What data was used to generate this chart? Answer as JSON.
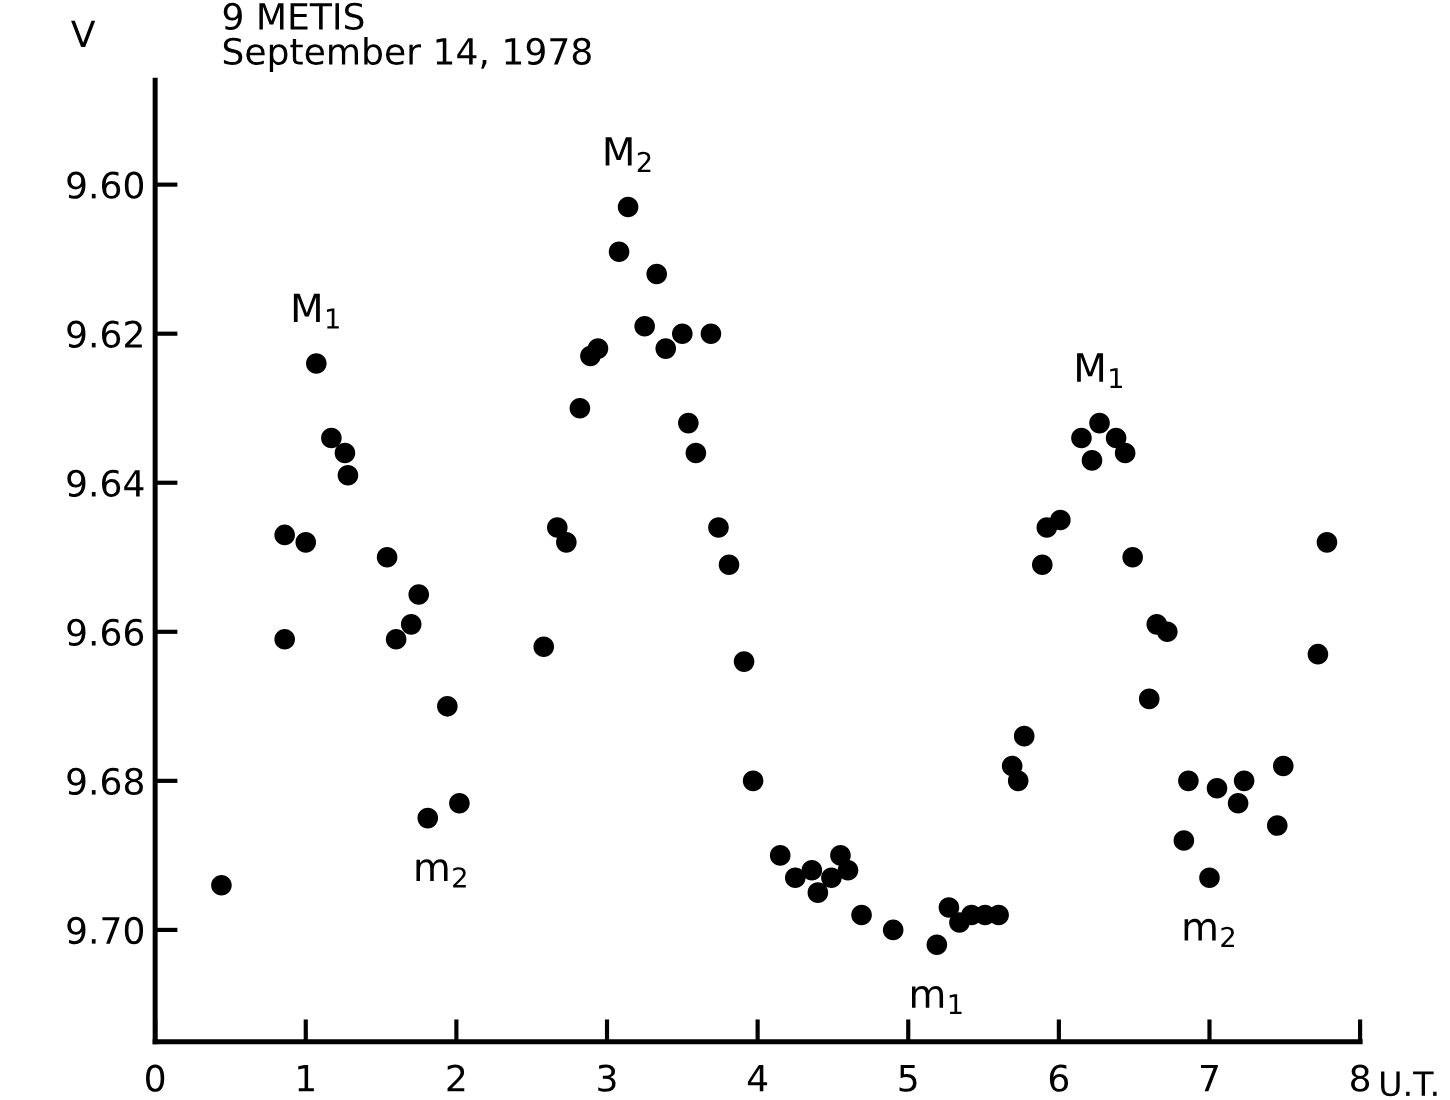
{
  "chart_data": {
    "type": "scatter",
    "title": "9 METIS",
    "subtitle": "September 14, 1978",
    "xlabel": "U.T.",
    "ylabel": "V",
    "x": [
      0.44,
      0.86,
      0.86,
      1.0,
      1.07,
      1.17,
      1.26,
      1.28,
      1.54,
      1.6,
      1.7,
      1.75,
      1.81,
      1.94,
      2.02,
      2.58,
      2.67,
      2.73,
      2.82,
      2.89,
      2.94,
      3.08,
      3.14,
      3.25,
      3.33,
      3.39,
      3.5,
      3.54,
      3.59,
      3.69,
      3.74,
      3.81,
      3.91,
      3.97,
      4.15,
      4.25,
      4.36,
      4.4,
      4.49,
      4.55,
      4.6,
      4.69,
      4.9,
      5.19,
      5.27,
      5.34,
      5.42,
      5.51,
      5.6,
      5.69,
      5.73,
      5.77,
      5.89,
      5.92,
      6.01,
      6.15,
      6.22,
      6.27,
      6.38,
      6.44,
      6.49,
      6.6,
      6.65,
      6.72,
      6.83,
      6.86,
      7.0,
      7.05,
      7.19,
      7.23,
      7.45,
      7.49,
      7.72,
      7.78
    ],
    "series": [
      {
        "color": "#000000",
        "values": [
          9.694,
          9.661,
          9.647,
          9.648,
          9.624,
          9.634,
          9.636,
          9.639,
          9.65,
          9.661,
          9.659,
          9.655,
          9.685,
          9.67,
          9.683,
          9.662,
          9.646,
          9.648,
          9.63,
          9.623,
          9.622,
          9.609,
          9.603,
          9.619,
          9.612,
          9.622,
          9.62,
          9.632,
          9.636,
          9.62,
          9.646,
          9.651,
          9.664,
          9.68,
          9.69,
          9.693,
          9.692,
          9.695,
          9.693,
          9.69,
          9.692,
          9.698,
          9.7,
          9.702,
          9.697,
          9.699,
          9.698,
          9.698,
          9.698,
          9.678,
          9.68,
          9.674,
          9.651,
          9.646,
          9.645,
          9.634,
          9.637,
          9.632,
          9.634,
          9.636,
          9.65,
          9.669,
          9.659,
          9.66,
          9.688,
          9.68,
          9.693,
          9.681,
          9.683,
          9.68,
          9.686,
          9.678,
          9.663,
          9.648
        ]
      }
    ],
    "xlim": [
      0,
      8
    ],
    "xticks": [
      0,
      1,
      2,
      3,
      4,
      5,
      6,
      7,
      8
    ],
    "ylim": [
      9.715,
      9.586
    ],
    "yticks": [
      {
        "value": 9.6,
        "label": "9.60"
      },
      {
        "value": 9.62,
        "label": "9.62"
      },
      {
        "value": 9.64,
        "label": "9.64"
      },
      {
        "value": 9.66,
        "label": "9.66"
      },
      {
        "value": 9.68,
        "label": "9.68"
      },
      {
        "value": 9.7,
        "label": "9.70"
      }
    ],
    "grid": false,
    "marker": "circle",
    "annotations": [
      {
        "text": "M$_{1}$",
        "x": 1.07,
        "y": 9.624
      },
      {
        "text": "m$_{2}$",
        "x": 1.9,
        "y": 9.685
      },
      {
        "text": "M$_{2}$",
        "x": 3.14,
        "y": 9.603
      },
      {
        "text": "m$_{1}$",
        "x": 5.19,
        "y": 9.702
      },
      {
        "text": "M$_{1}$",
        "x": 6.27,
        "y": 9.632
      },
      {
        "text": "m$_{2}$",
        "x": 7.0,
        "y": 9.693
      }
    ]
  }
}
